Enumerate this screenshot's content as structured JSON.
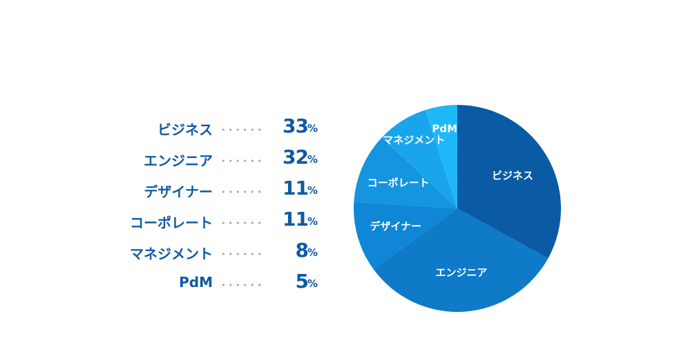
{
  "chart_data": {
    "type": "pie",
    "categories": [
      "ビジネス",
      "エンジニア",
      "デザイナー",
      "コーポレート",
      "マネジメント",
      "PdM"
    ],
    "values": [
      33,
      32,
      11,
      11,
      8,
      5
    ],
    "value_labels": [
      "33",
      "32",
      "11",
      "11",
      "8",
      "5"
    ],
    "unit": "%",
    "colors": [
      "#0a5ba4",
      "#0e7ac8",
      "#0f86d6",
      "#1594e0",
      "#19a5ec",
      "#1eb8f8"
    ]
  }
}
